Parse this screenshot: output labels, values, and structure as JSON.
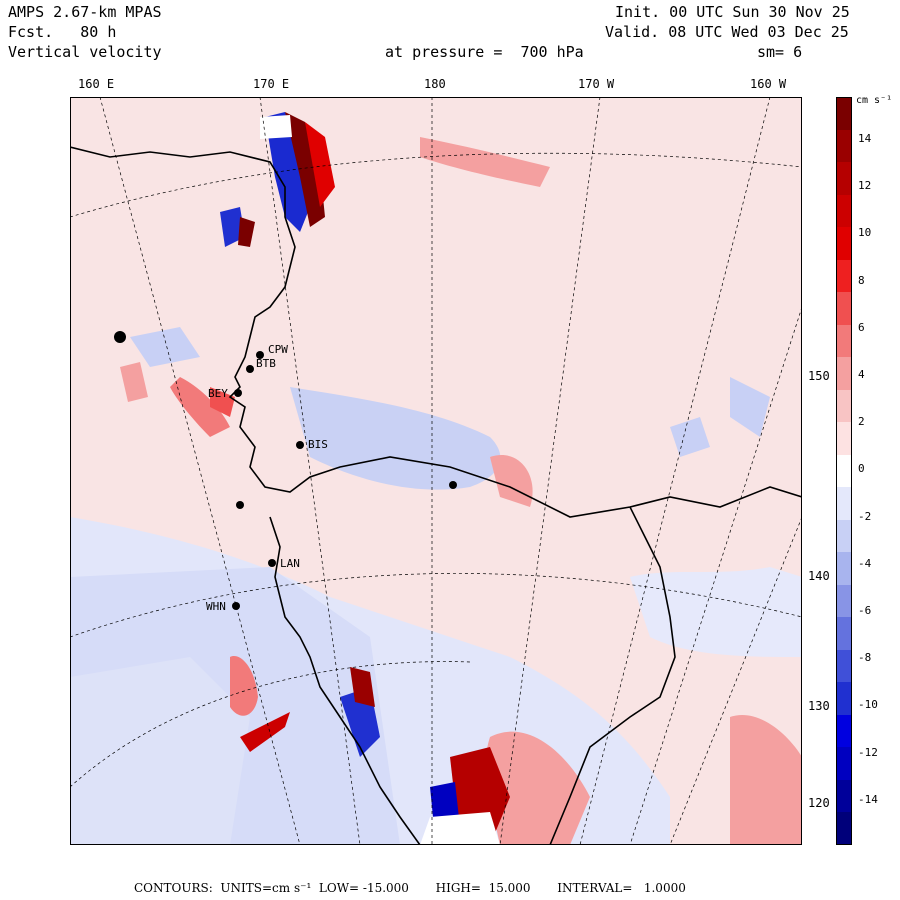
{
  "header": {
    "model": "AMPS 2.67-km MPAS",
    "forecast": "Fcst.   80 h",
    "field": "Vertical velocity",
    "init": "Init. 00 UTC Sun 30 Nov 25",
    "valid": "Valid. 08 UTC Wed 03 Dec 25",
    "pressure": "at pressure =  700 hPa",
    "smoothing": "sm= 6"
  },
  "lon_labels": [
    "160 E",
    "170 E",
    "180",
    "170 W",
    "160 W"
  ],
  "lat_labels": [
    "150 W",
    "140 W",
    "130 W",
    "120 W"
  ],
  "colorbar": {
    "units": "cm s⁻¹",
    "labels": [
      "14",
      "12",
      "10",
      "8",
      "6",
      "4",
      "2",
      "0",
      "-2",
      "-4",
      "-6",
      "-8",
      "-10",
      "-12",
      "-14"
    ],
    "colors": [
      "#7a0000",
      "#9a0000",
      "#b50000",
      "#cc0000",
      "#e00000",
      "#ee2020",
      "#f05050",
      "#f27a7a",
      "#f4a0a0",
      "#f8c4c4",
      "#fde2e2",
      "#ffffff",
      "#e4e8fb",
      "#c8d0f5",
      "#a8b4ee",
      "#8894e6",
      "#6472de",
      "#4050d8",
      "#2030d0",
      "#0000e0",
      "#0000c0",
      "#00009a",
      "#00007a"
    ]
  },
  "stations": [
    "CPW",
    "BTB",
    "BEY",
    "BIS",
    "LAN",
    "WHN"
  ],
  "footer": "CONTOURS:  UNITS=cm s⁻¹  LOW= -15.000       HIGH=  15.000       INTERVAL=   1.0000"
}
